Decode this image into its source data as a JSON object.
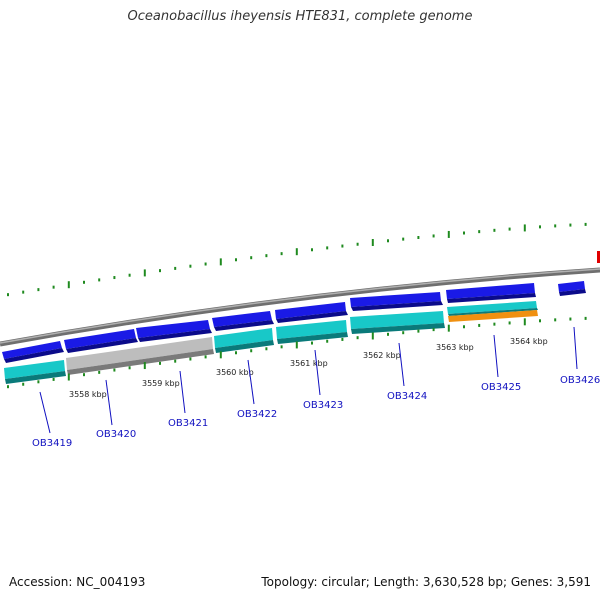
{
  "title": "Oceanobacillus iheyensis HTE831, complete genome",
  "footer": {
    "accession": "Accession: NC_004193",
    "summary": "Topology: circular; Length: 3,630,528 bp; Genes: 3,591"
  },
  "colors": {
    "backbone": "#8a8a8a",
    "forward_gene": "#1a1ae6",
    "cds": "#18c8c8",
    "hypothetical": "#bdbdbd",
    "rna": "#f09010",
    "marker": "#e00000",
    "gc_tick": "#1f8a1f",
    "label": "#1010c0"
  },
  "scale_labels": [
    "3558 kbp",
    "3559 kbp",
    "3560 kbp",
    "3561 kbp",
    "3562 kbp",
    "3563 kbp",
    "3564 kbp"
  ],
  "genes": [
    "OB3419",
    "OB3420",
    "OB3421",
    "OB3422",
    "OB3423",
    "OB3424",
    "OB3425",
    "OB3426"
  ]
}
